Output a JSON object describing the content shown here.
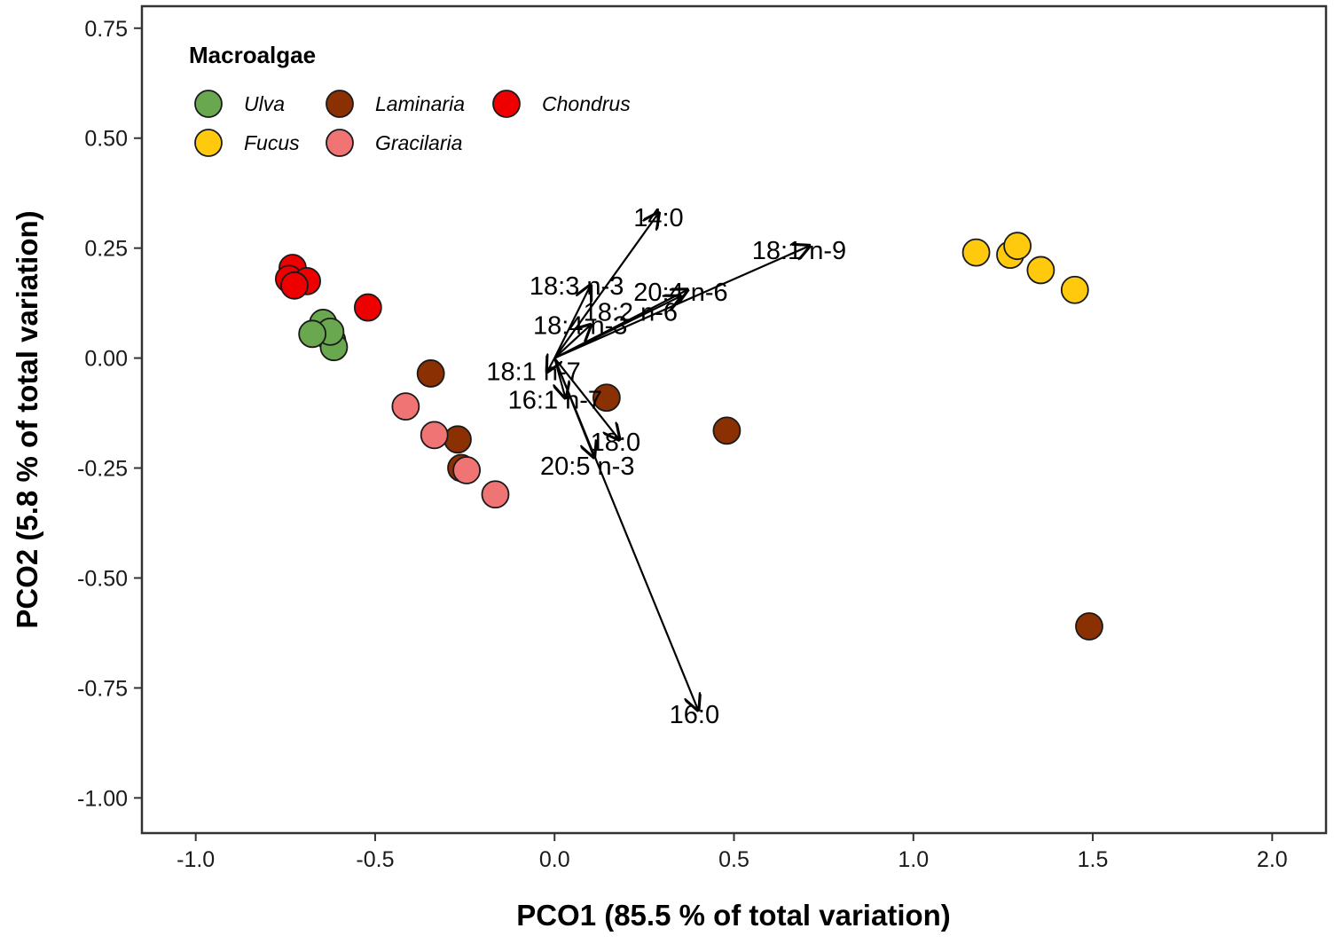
{
  "chart_data": {
    "type": "scatter",
    "xlabel": "PCO1 (85.5 % of total variation)",
    "ylabel": "PCO2 (5.8 % of total variation)",
    "xlim": [
      -1.15,
      2.15
    ],
    "ylim": [
      -1.08,
      0.8
    ],
    "x_ticks": [
      -1.0,
      -0.5,
      0.0,
      0.5,
      1.0,
      1.5,
      2.0
    ],
    "x_tick_labels": [
      "-1.0",
      "-0.5",
      "0.0",
      "0.5",
      "1.0",
      "1.5",
      "2.0"
    ],
    "y_ticks": [
      0.75,
      0.5,
      0.25,
      0.0,
      -0.25,
      -0.5,
      -0.75,
      -1.0
    ],
    "y_tick_labels": [
      "0.75",
      "0.50",
      "0.25",
      "0.00",
      "-0.25",
      "-0.50",
      "-0.75",
      "-1.00"
    ],
    "grid": false,
    "legend": {
      "title": "Macroalgae",
      "position": "top-left",
      "entries": [
        {
          "name": "Ulva",
          "color": "#6aa84f"
        },
        {
          "name": "Laminaria",
          "color": "#8b3003"
        },
        {
          "name": "Chondrus",
          "color": "#ee0000"
        },
        {
          "name": "Fucus",
          "color": "#ffc90e"
        },
        {
          "name": "Gracilaria",
          "color": "#f07474"
        }
      ]
    },
    "series": [
      {
        "name": "Chondrus",
        "color": "#ee0000",
        "points": [
          [
            -0.73,
            0.205
          ],
          [
            -0.74,
            0.18
          ],
          [
            -0.69,
            0.175
          ],
          [
            -0.725,
            0.165
          ],
          [
            -0.52,
            0.115
          ]
        ]
      },
      {
        "name": "Ulva",
        "color": "#6aa84f",
        "points": [
          [
            -0.645,
            0.08
          ],
          [
            -0.62,
            0.04
          ],
          [
            -0.615,
            0.025
          ],
          [
            -0.625,
            0.06
          ],
          [
            -0.675,
            0.055
          ]
        ]
      },
      {
        "name": "Laminaria",
        "color": "#8b3003",
        "points": [
          [
            -0.345,
            -0.035
          ],
          [
            -0.27,
            -0.185
          ],
          [
            -0.26,
            -0.25
          ],
          [
            0.145,
            -0.09
          ],
          [
            0.48,
            -0.165
          ],
          [
            1.49,
            -0.61
          ]
        ]
      },
      {
        "name": "Gracilaria",
        "color": "#f07474",
        "points": [
          [
            -0.415,
            -0.11
          ],
          [
            -0.335,
            -0.175
          ],
          [
            -0.245,
            -0.255
          ],
          [
            -0.165,
            -0.31
          ]
        ]
      },
      {
        "name": "Fucus",
        "color": "#ffc90e",
        "points": [
          [
            1.175,
            0.24
          ],
          [
            1.27,
            0.235
          ],
          [
            1.29,
            0.255
          ],
          [
            1.355,
            0.2
          ],
          [
            1.45,
            0.155
          ]
        ]
      }
    ],
    "vectors": [
      {
        "label": "14:0",
        "x": 0.29,
        "y": 0.33,
        "label_x": 0.22,
        "label_y": 0.32
      },
      {
        "label": "18:1 n-9",
        "x": 0.71,
        "y": 0.255,
        "label_x": 0.55,
        "label_y": 0.245
      },
      {
        "label": "18:3 n-3",
        "x": 0.1,
        "y": 0.165,
        "label_x": -0.07,
        "label_y": 0.165
      },
      {
        "label": "20:4 n-6",
        "x": 0.37,
        "y": 0.155,
        "label_x": 0.22,
        "label_y": 0.15
      },
      {
        "label": "18:2 n-6",
        "x": 0.35,
        "y": 0.14,
        "label_x": 0.08,
        "label_y": 0.105
      },
      {
        "label": "18:4 n-3",
        "x": 0.1,
        "y": 0.075,
        "label_x": -0.06,
        "label_y": 0.075
      },
      {
        "label": "18:1 n-7",
        "x": -0.02,
        "y": -0.03,
        "label_x": -0.19,
        "label_y": -0.03
      },
      {
        "label": "16:1 n-7",
        "x": 0.03,
        "y": -0.09,
        "label_x": -0.13,
        "label_y": -0.095
      },
      {
        "label": "18:0",
        "x": 0.18,
        "y": -0.185,
        "label_x": 0.1,
        "label_y": -0.19
      },
      {
        "label": "20:5 n-3",
        "x": 0.11,
        "y": -0.225,
        "label_x": -0.04,
        "label_y": -0.245
      },
      {
        "label": "16:0",
        "x": 0.4,
        "y": -0.8,
        "label_x": 0.32,
        "label_y": -0.81
      }
    ],
    "vector_origin": [
      0.0,
      0.0
    ]
  }
}
